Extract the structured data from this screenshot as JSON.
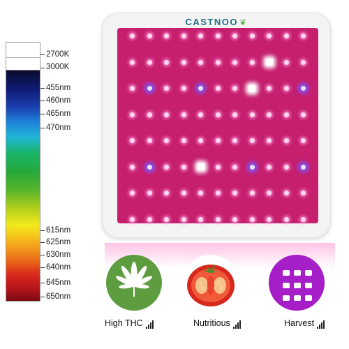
{
  "brand": {
    "name": "CASTNOO",
    "logo_icon": "leaf-icon"
  },
  "spectrum": {
    "labels": [
      "2700K",
      "3000K",
      "455nm",
      "460nm",
      "465nm",
      "470nm",
      "615nm",
      "625nm",
      "630nm",
      "640nm",
      "645nm",
      "650nm"
    ]
  },
  "panel": {
    "board_color": "#c51f6e",
    "led_grid": {
      "rows": 8,
      "cols": 11
    }
  },
  "features": [
    {
      "label": "High THC",
      "icon": "cannabis-leaf-icon"
    },
    {
      "label": "Nutritious",
      "icon": "tomato-icon"
    },
    {
      "label": "Harvest",
      "icon": "grow-light-icon"
    }
  ]
}
